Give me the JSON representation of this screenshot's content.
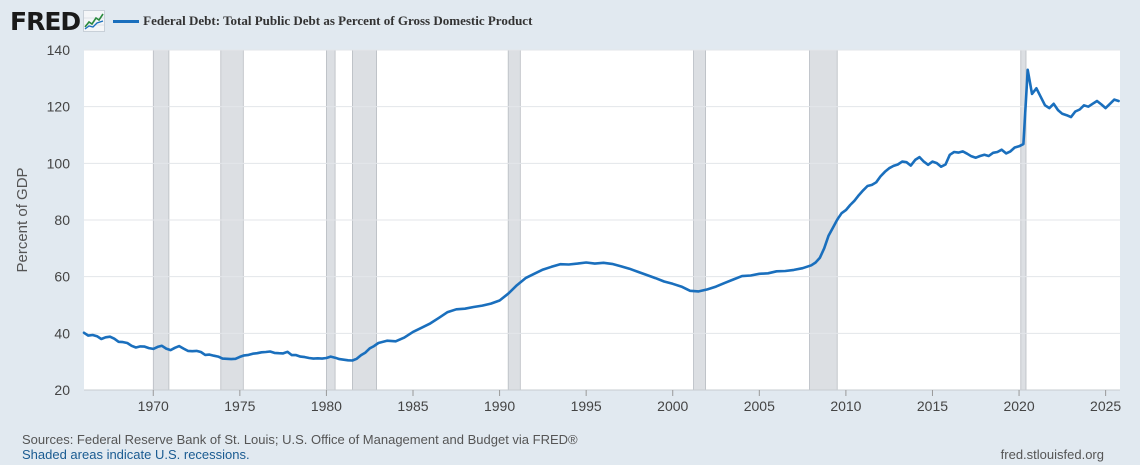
{
  "brand": {
    "logo_text": "FRED",
    "logo_icon": "line-chart-icon"
  },
  "legend": {
    "label": "Federal Debt: Total Public Debt as Percent of Gross Domestic Product"
  },
  "colors": {
    "series": "#1a6fbd",
    "recession": "#dcdfe3",
    "background": "#e1e9f0",
    "plot": "#ffffff"
  },
  "footer": {
    "sources": "Sources: Federal Reserve Bank of St. Louis; U.S. Office of Management and Budget via FRED®",
    "recessions_note": "Shaded areas indicate U.S. recessions.",
    "site": "fred.stlouisfed.org"
  },
  "chart_data": {
    "type": "line",
    "title": "Federal Debt: Total Public Debt as Percent of Gross Domestic Product",
    "ylabel": "Percent of GDP",
    "xlabel": "",
    "xlim": [
      1966.0,
      2025.83
    ],
    "ylim": [
      20,
      140
    ],
    "yticks": [
      20,
      40,
      60,
      80,
      100,
      120,
      140
    ],
    "xticks": [
      1970,
      1975,
      1980,
      1985,
      1990,
      1995,
      2000,
      2005,
      2010,
      2015,
      2020,
      2025
    ],
    "grid": true,
    "recessions": [
      [
        1970.0,
        1970.9
      ],
      [
        1973.9,
        1975.2
      ],
      [
        1980.0,
        1980.5
      ],
      [
        1981.5,
        1982.9
      ],
      [
        1990.5,
        1991.2
      ],
      [
        2001.2,
        2001.9
      ],
      [
        2007.9,
        2009.5
      ],
      [
        2020.1,
        2020.4
      ]
    ],
    "series": [
      {
        "name": "Federal Debt: Total Public Debt as Percent of Gross Domestic Product",
        "x": [
          1966.0,
          1966.25,
          1966.5,
          1966.75,
          1967.0,
          1967.25,
          1967.5,
          1967.75,
          1968.0,
          1968.25,
          1968.5,
          1968.75,
          1969.0,
          1969.25,
          1969.5,
          1969.75,
          1970.0,
          1970.25,
          1970.5,
          1970.75,
          1971.0,
          1971.25,
          1971.5,
          1971.75,
          1972.0,
          1972.25,
          1972.5,
          1972.75,
          1973.0,
          1973.25,
          1973.5,
          1973.75,
          1974.0,
          1974.25,
          1974.5,
          1974.75,
          1975.0,
          1975.25,
          1975.5,
          1975.75,
          1976.0,
          1976.25,
          1976.5,
          1976.75,
          1977.0,
          1977.25,
          1977.5,
          1977.75,
          1978.0,
          1978.25,
          1978.5,
          1978.75,
          1979.0,
          1979.25,
          1979.5,
          1979.75,
          1980.0,
          1980.25,
          1980.5,
          1980.75,
          1981.0,
          1981.25,
          1981.5,
          1981.75,
          1982.0,
          1982.25,
          1982.5,
          1982.75,
          1983.0,
          1983.5,
          1984.0,
          1984.5,
          1985.0,
          1985.5,
          1986.0,
          1986.5,
          1987.0,
          1987.5,
          1988.0,
          1988.5,
          1989.0,
          1989.5,
          1990.0,
          1990.5,
          1991.0,
          1991.5,
          1992.0,
          1992.5,
          1993.0,
          1993.5,
          1994.0,
          1994.5,
          1995.0,
          1995.5,
          1996.0,
          1996.5,
          1997.0,
          1997.5,
          1998.0,
          1998.5,
          1999.0,
          1999.5,
          2000.0,
          2000.5,
          2001.0,
          2001.5,
          2002.0,
          2002.5,
          2003.0,
          2003.5,
          2004.0,
          2004.5,
          2005.0,
          2005.5,
          2006.0,
          2006.5,
          2007.0,
          2007.5,
          2008.0,
          2008.25,
          2008.5,
          2008.75,
          2009.0,
          2009.25,
          2009.5,
          2009.75,
          2010.0,
          2010.25,
          2010.5,
          2010.75,
          2011.0,
          2011.25,
          2011.5,
          2011.75,
          2012.0,
          2012.25,
          2012.5,
          2012.75,
          2013.0,
          2013.25,
          2013.5,
          2013.75,
          2014.0,
          2014.25,
          2014.5,
          2014.75,
          2015.0,
          2015.25,
          2015.5,
          2015.75,
          2016.0,
          2016.25,
          2016.5,
          2016.75,
          2017.0,
          2017.25,
          2017.5,
          2017.75,
          2018.0,
          2018.25,
          2018.5,
          2018.75,
          2019.0,
          2019.25,
          2019.5,
          2019.75,
          2020.0,
          2020.25,
          2020.5,
          2020.75,
          2021.0,
          2021.25,
          2021.5,
          2021.75,
          2022.0,
          2022.25,
          2022.5,
          2022.75,
          2023.0,
          2023.25,
          2023.5,
          2023.75,
          2024.0,
          2024.25,
          2024.5,
          2024.75,
          2025.0,
          2025.25,
          2025.5,
          2025.75
        ],
        "y": [
          40.2,
          39.2,
          39.4,
          39.0,
          38.0,
          38.6,
          38.8,
          38.1,
          37.0,
          36.9,
          36.6,
          35.6,
          35.0,
          35.4,
          35.3,
          34.8,
          34.5,
          35.2,
          35.6,
          34.6,
          34.1,
          34.9,
          35.5,
          34.6,
          33.8,
          33.7,
          33.8,
          33.4,
          32.4,
          32.5,
          32.1,
          31.8,
          31.1,
          31.0,
          30.9,
          31.0,
          31.7,
          32.2,
          32.4,
          32.8,
          33.0,
          33.3,
          33.4,
          33.6,
          33.1,
          33.0,
          32.9,
          33.5,
          32.3,
          32.3,
          31.8,
          31.6,
          31.3,
          31.1,
          31.2,
          31.1,
          31.3,
          31.8,
          31.4,
          30.9,
          30.7,
          30.5,
          30.4,
          31.0,
          32.3,
          33.2,
          34.7,
          35.5,
          36.6,
          37.4,
          37.2,
          38.5,
          40.5,
          42.0,
          43.5,
          45.5,
          47.5,
          48.5,
          48.7,
          49.3,
          49.8,
          50.5,
          51.6,
          54.0,
          57.0,
          59.5,
          61.0,
          62.5,
          63.5,
          64.4,
          64.3,
          64.6,
          65.0,
          64.6,
          64.9,
          64.5,
          63.7,
          62.8,
          61.7,
          60.6,
          59.5,
          58.3,
          57.5,
          56.5,
          55.0,
          54.8,
          55.5,
          56.5,
          57.8,
          59.0,
          60.2,
          60.4,
          61.0,
          61.2,
          61.9,
          62.0,
          62.4,
          63.0,
          64.0,
          65.0,
          66.7,
          70.0,
          74.5,
          77.3,
          80.1,
          82.4,
          83.5,
          85.3,
          86.8,
          88.8,
          90.5,
          92.0,
          92.4,
          93.3,
          95.4,
          97.0,
          98.3,
          99.1,
          99.6,
          100.6,
          100.4,
          99.2,
          101.2,
          102.2,
          100.6,
          99.5,
          100.6,
          100.1,
          98.8,
          99.6,
          103.0,
          104.0,
          103.8,
          104.2,
          103.4,
          102.5,
          102.0,
          102.6,
          103.0,
          102.6,
          103.7,
          104.0,
          104.8,
          103.5,
          104.2,
          105.6,
          106.0,
          106.8,
          133.0,
          124.5,
          126.5,
          123.5,
          120.5,
          119.5,
          121.0,
          118.8,
          117.5,
          117.0,
          116.3,
          118.3,
          119.0,
          120.5,
          120.0,
          121.0,
          122.0,
          120.8,
          119.5,
          121.0,
          122.5,
          122.0
        ]
      }
    ]
  }
}
